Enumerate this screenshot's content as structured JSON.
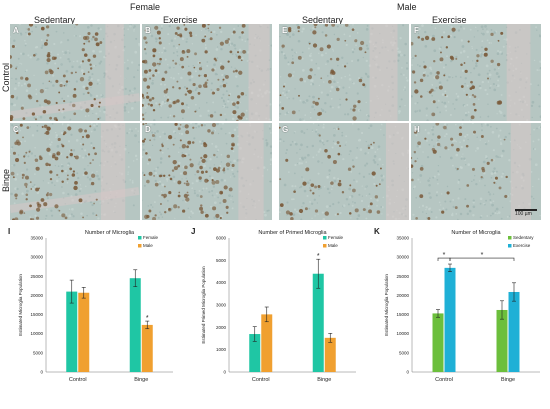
{
  "header": {
    "female": "Female",
    "male": "Male",
    "col_labels": [
      "Sedentary",
      "Exercise",
      "Sedentary",
      "Exercise"
    ],
    "row_labels": [
      "Control",
      "Binge"
    ]
  },
  "micrographs": {
    "letters": [
      "A",
      "B",
      "E",
      "F",
      "C",
      "D",
      "G",
      "H"
    ],
    "scale_bar": "100 µm",
    "colors": {
      "tissue": "#b6c6c2",
      "stain": "#7a5a3a",
      "stripe": "#d8c8c8"
    }
  },
  "panels": {
    "I": {
      "letter": "I"
    },
    "J": {
      "letter": "J"
    },
    "K": {
      "letter": "K"
    }
  },
  "colors": {
    "female": "#1fc6a4",
    "male": "#f0a030",
    "sedentary": "#6cbf3c",
    "exercise": "#1fb0d6"
  },
  "chart_data": [
    {
      "type": "bar",
      "title": "Number of Microglia",
      "ylabel": "Estimated Microglia Population",
      "xlabel": "",
      "categories": [
        "Control",
        "Binge"
      ],
      "ylim": [
        0,
        35000
      ],
      "yticks": [
        "0",
        "5000",
        "10000",
        "15000",
        "20000",
        "25000",
        "30000",
        "35000"
      ],
      "series": [
        {
          "name": "Female",
          "values": [
            21000,
            24500
          ],
          "errors": [
            3000,
            2200
          ]
        },
        {
          "name": "Male",
          "values": [
            20700,
            12300
          ],
          "errors": [
            1400,
            1000
          ]
        }
      ],
      "annotations": [
        "*"
      ]
    },
    {
      "type": "bar",
      "title": "Number of Primed Microglia",
      "ylabel": "Estimated Primed Microglia Population",
      "xlabel": "",
      "categories": [
        "Control",
        "Binge"
      ],
      "ylim": [
        0,
        6000
      ],
      "yticks": [
        "0",
        "1000",
        "2000",
        "3000",
        "4000",
        "5000",
        "6000"
      ],
      "series": [
        {
          "name": "Female",
          "values": [
            1700,
            4400
          ],
          "errors": [
            330,
            650
          ]
        },
        {
          "name": "Male",
          "values": [
            2580,
            1530
          ],
          "errors": [
            330,
            200
          ]
        }
      ],
      "annotations": [
        "*"
      ]
    },
    {
      "type": "bar",
      "title": "Number of Microglia",
      "ylabel": "Estimated Microglia Population",
      "xlabel": "",
      "categories": [
        "Control",
        "Binge"
      ],
      "ylim": [
        0,
        35000
      ],
      "yticks": [
        "0",
        "5000",
        "10000",
        "15000",
        "20000",
        "25000",
        "30000",
        "35000"
      ],
      "series": [
        {
          "name": "Sedentary",
          "values": [
            15300,
            16200
          ],
          "errors": [
            1000,
            2400
          ]
        },
        {
          "name": "Exercise",
          "values": [
            27200,
            20900
          ],
          "errors": [
            1000,
            2400
          ]
        }
      ],
      "annotations": [
        "*",
        "*"
      ]
    }
  ]
}
